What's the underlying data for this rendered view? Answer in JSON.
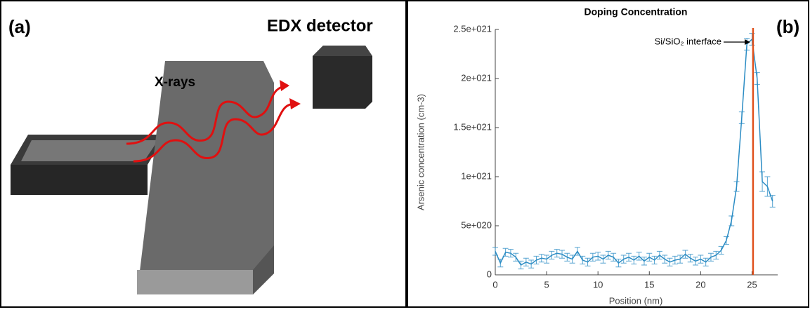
{
  "panel_a": {
    "label": "(a)",
    "xrays": "X-rays",
    "detector": "EDX detector"
  },
  "panel_b_label": "(b)",
  "chart_data": {
    "type": "line",
    "title": "Doping Concentration",
    "x_label": "Position (nm)",
    "y_label": "Arsenic concentration (cm-3)",
    "x": [
      0,
      0.5,
      1,
      1.5,
      2,
      2.5,
      3,
      3.5,
      4,
      4.5,
      5,
      5.5,
      6,
      6.5,
      7,
      7.5,
      8,
      8.5,
      9,
      9.5,
      10,
      10.5,
      11,
      11.5,
      12,
      12.5,
      13,
      13.5,
      14,
      14.5,
      15,
      15.5,
      16,
      16.5,
      17,
      17.5,
      18,
      18.5,
      19,
      19.5,
      20,
      20.5,
      21,
      21.5,
      22,
      22.5,
      23,
      23.5,
      24,
      24.5,
      25,
      25.5,
      26,
      26.5,
      27
    ],
    "series": [
      {
        "name": "Arsenic",
        "color": "#2b8cc4",
        "values": [
          2.4e+20,
          1.2e+20,
          2.3e+20,
          2.2e+20,
          1.8e+20,
          1e+20,
          1.3e+20,
          1.1e+20,
          1.5e+20,
          1.7e+20,
          1.6e+20,
          2e+20,
          2.2e+20,
          2.1e+20,
          1.8e+20,
          1.6e+20,
          2.4e+20,
          1.5e+20,
          1.3e+20,
          1.8e+20,
          1.9e+20,
          1.6e+20,
          2e+20,
          1.8e+20,
          1.2e+20,
          1.6e+20,
          1.8e+20,
          1.5e+20,
          1.9e+20,
          1.4e+20,
          1.8e+20,
          1.5e+20,
          2e+20,
          1.6e+20,
          1.3e+20,
          1.5e+20,
          1.6e+20,
          2.1e+20,
          1.7e+20,
          1.4e+20,
          1.6e+20,
          1.3e+20,
          1.8e+20,
          2e+20,
          2.5e+20,
          3.5e+20,
          5.5e+20,
          9e+20,
          1.6e+21,
          2.35e+21,
          2.4e+21,
          2e+21,
          9.5e+20,
          9e+20,
          7.5e+20
        ],
        "errors": [
          4e+19,
          4e+19,
          4e+19,
          4e+19,
          4e+19,
          4e+19,
          4e+19,
          4e+19,
          4e+19,
          4e+19,
          4e+19,
          4e+19,
          4e+19,
          4e+19,
          4e+19,
          4e+19,
          4e+19,
          4e+19,
          4e+19,
          4e+19,
          4e+19,
          4e+19,
          4e+19,
          4e+19,
          4e+19,
          4e+19,
          4e+19,
          4e+19,
          4e+19,
          4e+19,
          4e+19,
          4e+19,
          4e+19,
          4e+19,
          4e+19,
          4e+19,
          4e+19,
          4e+19,
          4e+19,
          4e+19,
          4e+19,
          4e+19,
          4e+19,
          4e+19,
          4e+19,
          4e+19,
          5e+19,
          5e+19,
          6e+19,
          6e+19,
          6e+19,
          6e+19,
          1e+20,
          1e+20,
          6e+19
        ]
      }
    ],
    "xlim": [
      0,
      27.5
    ],
    "xticks": [
      0,
      5,
      10,
      15,
      20,
      25
    ],
    "ylim": [
      0,
      2.5e+21
    ],
    "yticks": [
      0,
      {
        "value": 5e+20,
        "label": "5e+020"
      },
      {
        "value": 1e+21,
        "label": "1e+021"
      },
      {
        "value": 1.5e+21,
        "label": "1.5e+021"
      },
      {
        "value": 2e+21,
        "label": "2e+021"
      },
      {
        "value": 2.5e+21,
        "label": "2.5e+021"
      }
    ],
    "annotation": {
      "text": "Si/SiO₂ interface",
      "x": 25.1,
      "color": "#e0521e"
    }
  }
}
